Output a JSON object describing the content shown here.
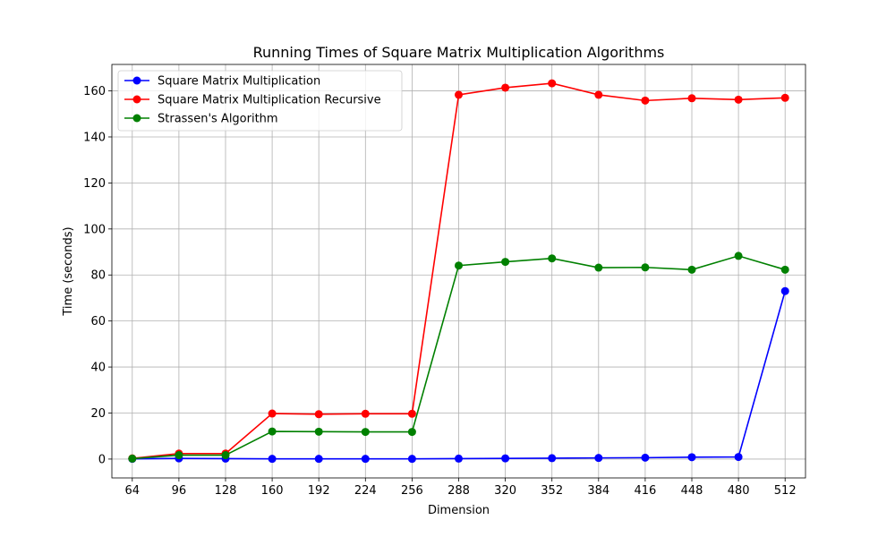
{
  "chart_data": {
    "type": "line",
    "title": "Running Times of Square Matrix Multiplication Algorithms",
    "xlabel": "Dimension",
    "ylabel": "Time (seconds)",
    "x": [
      64,
      96,
      128,
      160,
      192,
      224,
      256,
      288,
      320,
      352,
      384,
      416,
      448,
      480,
      512
    ],
    "xlim": [
      50,
      526
    ],
    "ylim": [
      -8.2,
      171.5
    ],
    "yticks": [
      0,
      20,
      40,
      60,
      80,
      100,
      120,
      140,
      160
    ],
    "grid": true,
    "legend_position": "top-left",
    "series": [
      {
        "name": "Square Matrix Multiplication",
        "color": "#0000ff",
        "marker": "circle",
        "values": [
          0.1,
          0.3,
          0.2,
          0.1,
          0.1,
          0.1,
          0.1,
          0.2,
          0.3,
          0.4,
          0.5,
          0.6,
          0.8,
          0.9,
          73.0
        ]
      },
      {
        "name": "Square Matrix Multiplication Recursive",
        "color": "#ff0000",
        "marker": "circle",
        "values": [
          0.3,
          2.4,
          2.4,
          19.8,
          19.5,
          19.7,
          19.7,
          158.3,
          161.4,
          163.3,
          158.3,
          155.8,
          156.8,
          156.2,
          157.0
        ]
      },
      {
        "name": "Strassen's Algorithm",
        "color": "#008000",
        "marker": "circle",
        "values": [
          0.2,
          1.7,
          1.7,
          12.0,
          11.9,
          11.8,
          11.8,
          84.1,
          85.7,
          87.2,
          83.2,
          83.3,
          82.3,
          88.3,
          82.3
        ]
      }
    ]
  }
}
